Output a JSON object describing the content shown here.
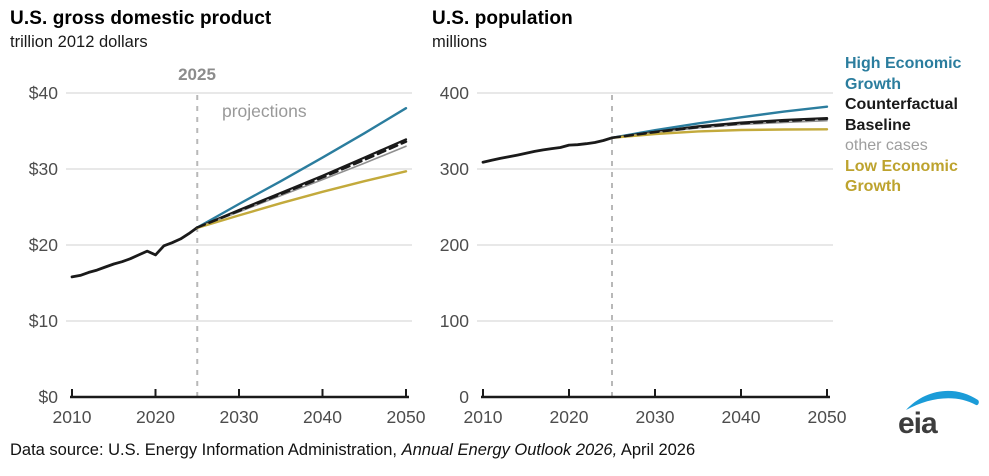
{
  "charts_header": [
    {
      "title": "U.S. gross domestic product",
      "subtitle": "trillion 2012 dollars"
    },
    {
      "title": "U.S. population",
      "subtitle": "millions"
    }
  ],
  "legend": {
    "items": [
      {
        "label": "High Economic Growth",
        "color": "#2b7d9e",
        "bold": true
      },
      {
        "label": "Counterfactual",
        "color": "#1a1a1a",
        "bold": true
      },
      {
        "label": "Baseline",
        "color": "#1a1a1a",
        "bold": true
      },
      {
        "label": "other cases",
        "color": "#9e9e9e",
        "bold": false
      },
      {
        "label": "Low Economic Growth",
        "color": "#bda32e",
        "bold": true
      }
    ]
  },
  "footer": {
    "prefix": "Data source: U.S. Energy Information Administration, ",
    "italic": "Annual Energy Outlook 2026,",
    "suffix": " April 2026"
  },
  "logo": {
    "text": "eia",
    "swoosh_color": "#1b9cd8",
    "text_color": "#3d3d3d"
  },
  "colors": {
    "grid": "#d9d9d9",
    "axis": "#1a1a1a",
    "tick_label": "#4d4d4d",
    "vline": "#b8b8b8",
    "high": "#2b7d9e",
    "black_line": "#1a1a1a",
    "other": "#8f8f8f",
    "low": "#c3aa3c"
  },
  "chart_data": [
    {
      "type": "line",
      "title": "U.S. gross domestic product",
      "subtitle": "trillion 2012 dollars",
      "xlim": [
        2010,
        2050
      ],
      "ylim": [
        0,
        40
      ],
      "grid": true,
      "yticks": [
        {
          "value": 0,
          "label": "$0"
        },
        {
          "value": 10,
          "label": "$10"
        },
        {
          "value": 20,
          "label": "$20"
        },
        {
          "value": 30,
          "label": "$30"
        },
        {
          "value": 40,
          "label": "$40"
        }
      ],
      "xticks": [
        {
          "value": 2010,
          "label": "2010"
        },
        {
          "value": 2020,
          "label": "2020"
        },
        {
          "value": 2030,
          "label": "2030"
        },
        {
          "value": 2040,
          "label": "2040"
        },
        {
          "value": 2050,
          "label": "2050"
        }
      ],
      "vline": {
        "x": 2025,
        "label": "2025"
      },
      "note": "projections",
      "series": [
        {
          "name": "history",
          "color": "#1a1a1a",
          "width": 2.8,
          "dash": null,
          "x": [
            2010,
            2011,
            2012,
            2013,
            2014,
            2015,
            2016,
            2017,
            2018,
            2019,
            2020,
            2021,
            2022,
            2023,
            2024,
            2025
          ],
          "y": [
            15.8,
            16.0,
            16.4,
            16.7,
            17.1,
            17.5,
            17.8,
            18.2,
            18.7,
            19.2,
            18.7,
            19.9,
            20.3,
            20.8,
            21.5,
            22.3
          ]
        },
        {
          "name": "High Economic Growth",
          "color": "#2b7d9e",
          "width": 2.4,
          "dash": null,
          "x": [
            2025,
            2030,
            2035,
            2040,
            2045,
            2050
          ],
          "y": [
            22.3,
            25.4,
            28.4,
            31.5,
            34.7,
            38.0
          ]
        },
        {
          "name": "Counterfactual",
          "color": "#1a1a1a",
          "width": 2.2,
          "dash": null,
          "x": [
            2025,
            2030,
            2035,
            2040,
            2045,
            2050
          ],
          "y": [
            22.3,
            24.6,
            26.85,
            29.1,
            31.5,
            33.9
          ]
        },
        {
          "name": "other cases",
          "color": "#8f8f8f",
          "width": 1.6,
          "dash": null,
          "x": [
            2025,
            2030,
            2035,
            2040,
            2045,
            2050
          ],
          "y": [
            22.3,
            24.35,
            26.5,
            28.6,
            30.75,
            33.0
          ]
        },
        {
          "name": "Low Economic Growth",
          "color": "#c3aa3c",
          "width": 2.4,
          "dash": null,
          "x": [
            2025,
            2030,
            2035,
            2040,
            2045,
            2050
          ],
          "y": [
            22.25,
            23.9,
            25.5,
            27.0,
            28.4,
            29.7
          ]
        },
        {
          "name": "Baseline",
          "color": "#1a1a1a",
          "width": 2.5,
          "dash": "8 5",
          "x": [
            2025,
            2030,
            2035,
            2040,
            2045,
            2050
          ],
          "y": [
            22.3,
            24.5,
            26.7,
            28.9,
            31.2,
            33.6
          ]
        }
      ]
    },
    {
      "type": "line",
      "title": "U.S. population",
      "subtitle": "millions",
      "xlim": [
        2010,
        2050
      ],
      "ylim": [
        0,
        400
      ],
      "grid": true,
      "yticks": [
        {
          "value": 0,
          "label": "0"
        },
        {
          "value": 100,
          "label": "100"
        },
        {
          "value": 200,
          "label": "200"
        },
        {
          "value": 300,
          "label": "300"
        },
        {
          "value": 400,
          "label": "400"
        }
      ],
      "xticks": [
        {
          "value": 2010,
          "label": "2010"
        },
        {
          "value": 2020,
          "label": "2020"
        },
        {
          "value": 2030,
          "label": "2030"
        },
        {
          "value": 2040,
          "label": "2040"
        },
        {
          "value": 2050,
          "label": "2050"
        }
      ],
      "vline": {
        "x": 2025,
        "label": ""
      },
      "note": "",
      "series": [
        {
          "name": "history",
          "color": "#1a1a1a",
          "width": 2.8,
          "dash": null,
          "x": [
            2010,
            2011,
            2012,
            2013,
            2014,
            2015,
            2016,
            2017,
            2018,
            2019,
            2020,
            2021,
            2022,
            2023,
            2024,
            2025
          ],
          "y": [
            309,
            311.6,
            313.9,
            316.0,
            318.3,
            320.7,
            323.1,
            325.1,
            326.8,
            328.3,
            331.4,
            332.0,
            333.3,
            334.9,
            337.5,
            341.0
          ]
        },
        {
          "name": "High Economic Growth",
          "color": "#2b7d9e",
          "width": 2.4,
          "dash": null,
          "x": [
            2025,
            2030,
            2035,
            2040,
            2045,
            2050
          ],
          "y": [
            341,
            351,
            360,
            368,
            375.5,
            382
          ]
        },
        {
          "name": "Counterfactual",
          "color": "#1a1a1a",
          "width": 2.2,
          "dash": null,
          "x": [
            2025,
            2030,
            2035,
            2040,
            2045,
            2050
          ],
          "y": [
            341,
            349,
            356,
            361,
            364.5,
            367
          ]
        },
        {
          "name": "other cases",
          "color": "#8f8f8f",
          "width": 1.6,
          "dash": null,
          "x": [
            2025,
            2030,
            2035,
            2040,
            2045,
            2050
          ],
          "y": [
            341,
            348,
            354,
            358.5,
            361.3,
            363.5
          ]
        },
        {
          "name": "Low Economic Growth",
          "color": "#c3aa3c",
          "width": 2.4,
          "dash": null,
          "x": [
            2025,
            2030,
            2035,
            2040,
            2045,
            2050
          ],
          "y": [
            341,
            346,
            349.5,
            351.3,
            352,
            352.3
          ]
        },
        {
          "name": "Baseline",
          "color": "#1a1a1a",
          "width": 2.5,
          "dash": "8 5",
          "x": [
            2025,
            2030,
            2035,
            2040,
            2045,
            2050
          ],
          "y": [
            341,
            348.5,
            355,
            360,
            363.3,
            366
          ]
        }
      ]
    }
  ]
}
